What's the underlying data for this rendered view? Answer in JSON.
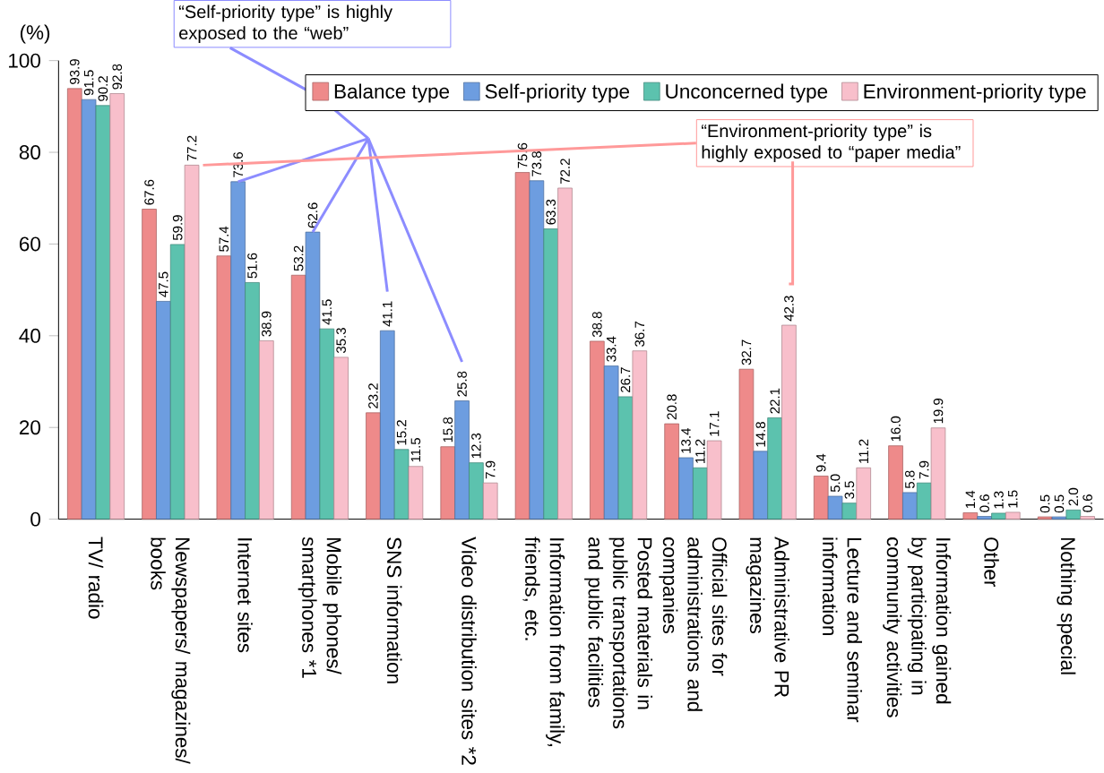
{
  "chart_data": {
    "type": "bar",
    "ylabel": "(%)",
    "ylim": [
      0,
      100
    ],
    "yticks": [
      0,
      20,
      40,
      60,
      80,
      100
    ],
    "legend": "top right",
    "grid": false,
    "categories": [
      "TV/ radio",
      "Newspapers/ magazines/ books",
      "Internet sites",
      "Mobile phones/ smartphones *1",
      "SNS information",
      "Video distribution sites *2",
      "Information from family, friends, etc.",
      "Posted materials in public transportations and public facilities",
      "Official sites for administrations and companies",
      "Administrative PR magazines",
      "Lecture and seminar information",
      "Information gained by participating in community activities",
      "Other",
      "Nothing special"
    ],
    "series": [
      {
        "name": "Balance type",
        "color": "#ee8a8a",
        "values": [
          93.9,
          67.6,
          57.4,
          53.2,
          23.2,
          15.8,
          75.6,
          38.8,
          20.8,
          32.7,
          9.4,
          16.0,
          1.4,
          0.5
        ],
        "value_labels": [
          "93.9",
          "67.6",
          "57.4",
          "53.2",
          "23.2",
          "15.8",
          "75.6",
          "38.8",
          "20.8",
          "32.7",
          "9.4",
          "16.0",
          "1.4",
          "0.5"
        ]
      },
      {
        "name": "Self-priority type",
        "color": "#6d9de0",
        "values": [
          91.5,
          47.5,
          73.6,
          62.6,
          41.1,
          25.8,
          73.8,
          33.4,
          13.4,
          14.8,
          5.0,
          5.8,
          0.6,
          0.5
        ],
        "value_labels": [
          "91.5",
          "47.5",
          "73.6",
          "62.6",
          "41.1",
          "25.8",
          "73.8",
          "33.4",
          "13.4",
          "14.8",
          "5.0",
          "5.8",
          "0.6",
          "0.5"
        ]
      },
      {
        "name": "Unconcerned type",
        "color": "#5cc2ae",
        "values": [
          90.2,
          59.9,
          51.6,
          41.5,
          15.2,
          12.3,
          63.3,
          26.7,
          11.2,
          22.1,
          3.5,
          7.9,
          1.3,
          2.0
        ],
        "value_labels": [
          "90.2",
          "59.9",
          "51.6",
          "41.5",
          "15.2",
          "12.3",
          "63.3",
          "26.7",
          "11.2",
          "22.1",
          "3.5",
          "7.9",
          "1.3",
          "2.0"
        ]
      },
      {
        "name": "Environment-priority type",
        "color": "#f8bfcb",
        "values": [
          92.8,
          77.2,
          38.9,
          35.3,
          11.5,
          7.9,
          72.2,
          36.7,
          17.1,
          42.3,
          11.2,
          19.9,
          1.5,
          0.6
        ],
        "value_labels": [
          "92.8",
          "77.2",
          "38.9",
          "35.3",
          "11.5",
          "7.9",
          "72.2",
          "36.7",
          "17.1",
          "42.3",
          "11.2",
          "19.9",
          "1.5",
          "0.6"
        ]
      }
    ],
    "annotations": [
      "“Self-priority type” is highly exposed to the “web”",
      "“Environment-priority type” is highly exposed to “paper media”"
    ]
  }
}
